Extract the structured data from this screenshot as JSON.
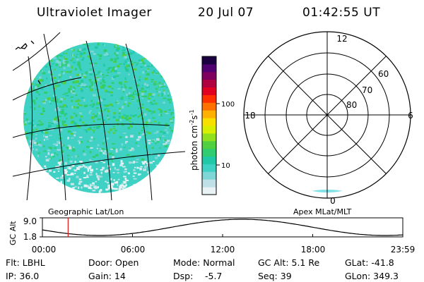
{
  "header": {
    "title": "Ultraviolet Imager",
    "date": "20 Jul 07",
    "time": "01:42:55 UT"
  },
  "colorbar": {
    "unit_label": "photon cm",
    "unit_sup1": "-2",
    "unit_mid": "s",
    "unit_sup2": "-1",
    "tick_100": "100",
    "tick_10": "10",
    "colors": [
      "#e8f2f4",
      "#bfe0e6",
      "#7fd6d6",
      "#3fd2c4",
      "#20c8a8",
      "#30cc70",
      "#50d040",
      "#90e020",
      "#d8f000",
      "#f8e000",
      "#ffb000",
      "#ff7000",
      "#ff3000",
      "#e00020",
      "#b00040",
      "#800060",
      "#500070",
      "#1a0040"
    ]
  },
  "polar": {
    "label_12": "12",
    "label_18": "18",
    "label_6": "6",
    "label_0": "0",
    "ring_80": "80",
    "ring_70": "70",
    "ring_60": "60"
  },
  "panel_labels": {
    "left": "Geographic Lat/Lon",
    "right": "Apex MLat/MLT"
  },
  "altitude_plot": {
    "ylabel": "GC Alt",
    "ytick_top": "9.0",
    "ytick_bottom": "1.8",
    "xticks": [
      "00:00",
      "06:00",
      "12:00",
      "18:00",
      "23:59"
    ],
    "marker_hour": 1.715
  },
  "footer": {
    "flt": "Flt: LBHL",
    "ip": "IP: 36.0",
    "door": "Door: Open",
    "gain": "Gain: 14",
    "mode": "Mode: Normal",
    "dsp": "Dsp:",
    "dsp_val": "-5.7",
    "gcalt": "GC Alt: 5.1 Re",
    "seq": "Seq: 39",
    "glat": "GLat: -41.8",
    "glon": "GLon: 349.3"
  }
}
